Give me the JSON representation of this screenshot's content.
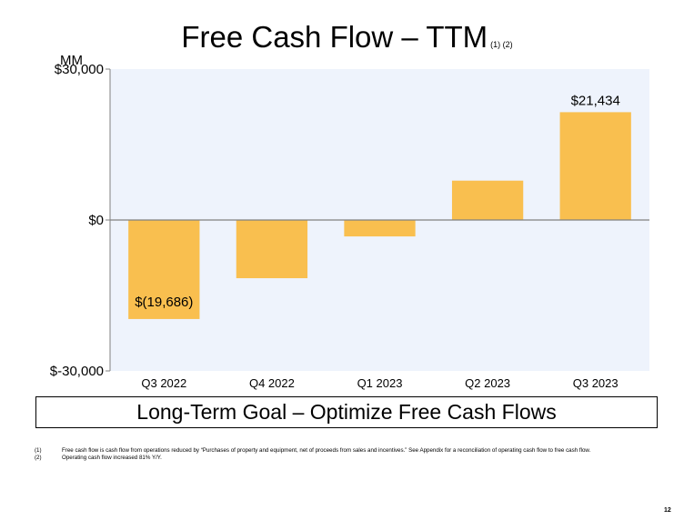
{
  "title": "Free Cash Flow – TTM",
  "title_footnote_refs": "(1) (2)",
  "unit_label": "MM",
  "goal_box": "Long-Term Goal – Optimize Free Cash Flows",
  "footnotes": [
    {
      "num": "(1)",
      "text": "Free cash flow is cash flow from operations reduced by “Purchases of property and equipment, net of proceeds from sales and incentives.” See Appendix for a reconciliation of operating cash flow to free cash flow."
    },
    {
      "num": "(2)",
      "text": "Operating cash flow increased 81% Y/Y."
    }
  ],
  "page_number": "12",
  "colors": {
    "bar": "#F9BF4F",
    "plot_background": "#EEF3FC",
    "axis": "#808080"
  },
  "chart_data": {
    "type": "bar",
    "categories": [
      "Q3 2022",
      "Q4 2022",
      "Q1 2023",
      "Q2 2023",
      "Q3 2023"
    ],
    "values": [
      -19686,
      -11569,
      -3264,
      7823,
      21434
    ],
    "data_labels": [
      "$(19,686)",
      "",
      "",
      "",
      "$21,434"
    ],
    "ylim": [
      -30000,
      30000
    ],
    "yticks": [
      30000,
      0,
      -30000
    ],
    "ytick_labels": [
      "$30,000",
      "$0",
      "$-30,000"
    ],
    "grid": false
  }
}
